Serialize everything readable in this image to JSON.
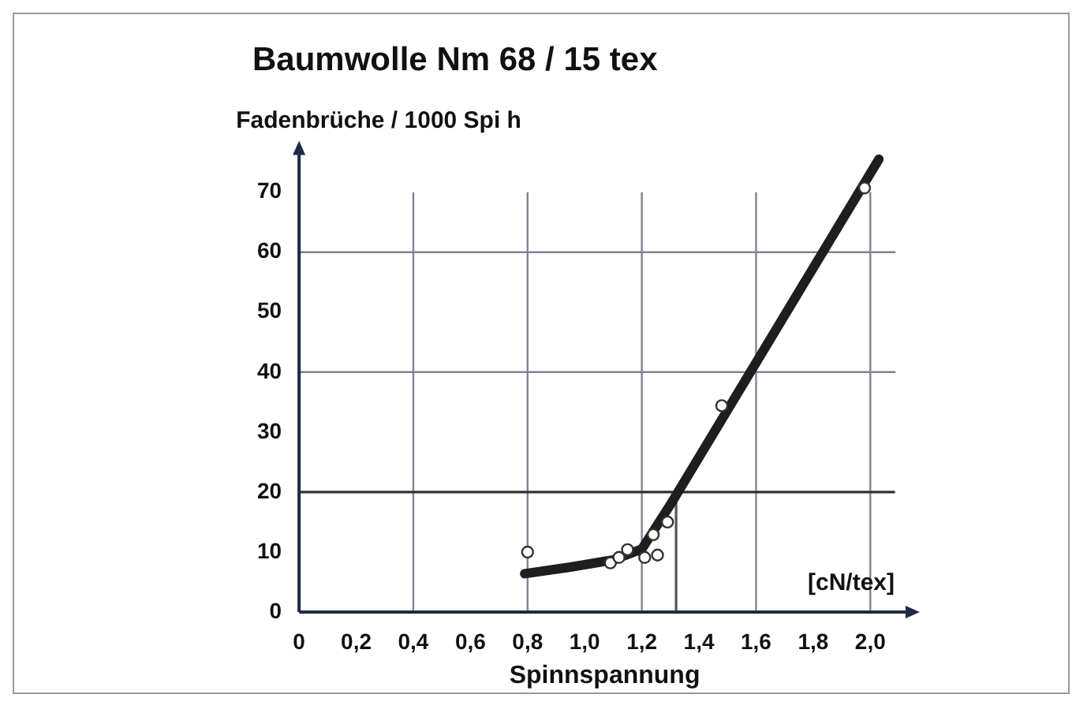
{
  "chart_data": {
    "type": "scatter",
    "title": "Baumwolle Nm 68 / 15 tex",
    "xlabel": "Spinnspannung",
    "ylabel": "Fadenbrüche / 1000 Spi h",
    "annotations": [
      "[cN/tex]"
    ],
    "series": [
      {
        "type": "scatter",
        "color": "#333333",
        "marker": "circle",
        "x": [
          0.8,
          1.09,
          1.12,
          1.15,
          1.21,
          1.24,
          1.255,
          1.29,
          1.48,
          1.98
        ],
        "values": [
          10,
          8.2,
          9.1,
          10.4,
          9.1,
          12.9,
          9.5,
          15,
          34.4,
          70.7
        ]
      },
      {
        "type": "line",
        "color": "#1e1e1e",
        "marker": "none",
        "x": [
          0.79,
          0.95,
          1.1,
          1.2,
          1.3,
          2.03
        ],
        "values": [
          6.4,
          7.5,
          8.7,
          10.5,
          17.9,
          75.5
        ]
      }
    ],
    "ref_lines": [
      {
        "axis": "y",
        "value": 20,
        "color": "#333333"
      },
      {
        "axis": "x",
        "value": 1.32,
        "color": "#555555"
      }
    ],
    "xlim": [
      0,
      2.14
    ],
    "ylim": [
      0,
      77
    ],
    "xticks": [
      0,
      {
        "value": 0.2,
        "label": "0,2"
      },
      {
        "value": 0.4,
        "label": "0,4"
      },
      {
        "value": 0.6,
        "label": "0,6"
      },
      {
        "value": 0.8,
        "label": "0,8"
      },
      {
        "value": 1.0,
        "label": "1,0"
      },
      {
        "value": 1.2,
        "label": "1,2"
      },
      {
        "value": 1.4,
        "label": "1,4"
      },
      {
        "value": 1.6,
        "label": "1,6"
      },
      {
        "value": 1.8,
        "label": "1,8"
      },
      {
        "value": 2.0,
        "label": "2,0"
      }
    ],
    "yticks": [
      0,
      10,
      20,
      30,
      40,
      50,
      60,
      70
    ],
    "grid": true,
    "legend": false
  }
}
